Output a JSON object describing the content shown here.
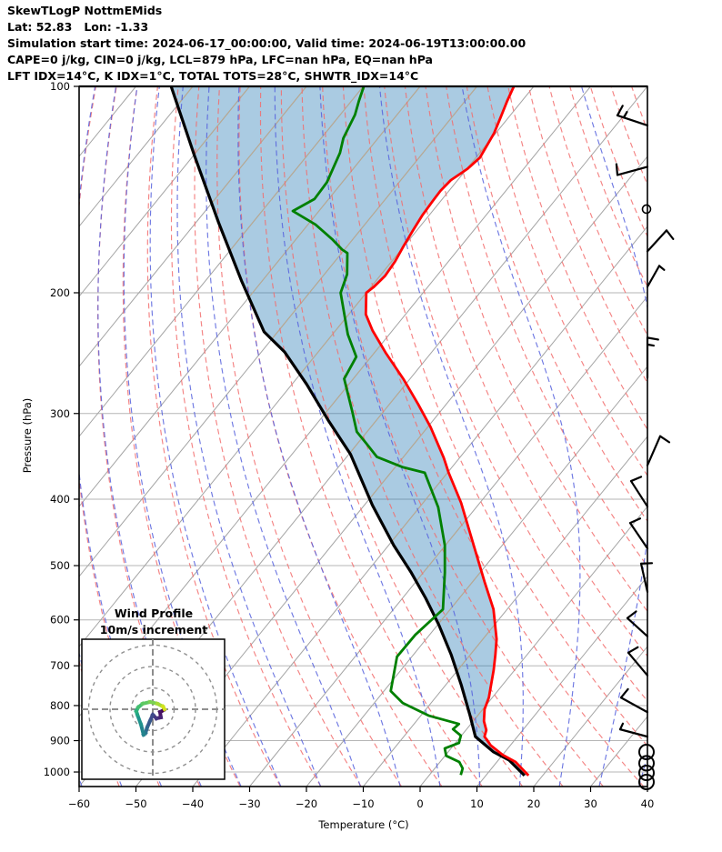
{
  "header": {
    "title": "SkewTLogP NottmEMids",
    "location": "Lat: 52.83   Lon: -1.33",
    "times": "Simulation start time: 2024-06-17_00:00:00, Valid time: 2024-06-19T13:00:00.00",
    "indices1": "CAPE=0 j/kg, CIN=0 j/kg, LCL=879 hPa, LFC=nan hPa, EQ=nan hPa",
    "indices2": "LFT IDX=14°C, K IDX=1°C, TOTAL TOTS=28°C, SHWTR_IDX=14°C"
  },
  "inset": {
    "title_line1": "Wind Profile",
    "title_line2": "10m/s increment"
  },
  "chart_data": {
    "type": "skewt-logp",
    "title": "SkewTLogP NottmEMids",
    "xlabel": "Temperature (°C)",
    "ylabel": "Pressure (hPa)",
    "x_ticks": [
      -60,
      -50,
      -40,
      -30,
      -20,
      -10,
      0,
      10,
      20,
      30,
      40
    ],
    "y_ticks": [
      100,
      200,
      300,
      400,
      500,
      600,
      700,
      800,
      900,
      1000
    ],
    "x_range_C": [
      -60,
      40
    ],
    "p_range_hPa": [
      100,
      1050
    ],
    "grid": true,
    "skew": "isotherms shift one full plot-width from bottom to top (45 deg axes skew)",
    "isotherm_step_C": 10,
    "temperature_profile_pT": [
      [
        100,
        -83.5
      ],
      [
        105,
        -82.6
      ],
      [
        111,
        -81.4
      ],
      [
        117,
        -80.3
      ],
      [
        127,
        -79.3
      ],
      [
        132,
        -79.9
      ],
      [
        137,
        -81.2
      ],
      [
        142,
        -81.5
      ],
      [
        147,
        -81.4
      ],
      [
        154,
        -81.2
      ],
      [
        162,
        -80.7
      ],
      [
        171,
        -80.1
      ],
      [
        180,
        -79.4
      ],
      [
        189,
        -79.1
      ],
      [
        196,
        -79.5
      ],
      [
        200,
        -80.0
      ],
      [
        215,
        -77.0
      ],
      [
        227,
        -73.5
      ],
      [
        245,
        -67.9
      ],
      [
        267,
        -61.2
      ],
      [
        291,
        -54.9
      ],
      [
        314,
        -49.5
      ],
      [
        348,
        -42.8
      ],
      [
        366,
        -39.8
      ],
      [
        405,
        -33.3
      ],
      [
        482,
        -23.2
      ],
      [
        528,
        -17.9
      ],
      [
        579,
        -12.4
      ],
      [
        640,
        -7.6
      ],
      [
        674,
        -5.6
      ],
      [
        710,
        -3.7
      ],
      [
        779,
        -0.6
      ],
      [
        810,
        0.3
      ],
      [
        843,
        1.9
      ],
      [
        869,
        3.6
      ],
      [
        888,
        4.2
      ],
      [
        915,
        6.6
      ],
      [
        944,
        10.0
      ],
      [
        967,
        13.3
      ],
      [
        1012,
        17.5
      ]
    ],
    "dewpoint_profile_pT": [
      [
        100,
        -109.9
      ],
      [
        105,
        -108.7
      ],
      [
        110,
        -107.4
      ],
      [
        119,
        -106.1
      ],
      [
        125,
        -104.6
      ],
      [
        138,
        -102.7
      ],
      [
        146,
        -102.5
      ],
      [
        152,
        -104.6
      ],
      [
        159,
        -98.7
      ],
      [
        167,
        -93.7
      ],
      [
        173,
        -90.4
      ],
      [
        175,
        -89.0
      ],
      [
        188,
        -86.0
      ],
      [
        200,
        -84.5
      ],
      [
        230,
        -77.3
      ],
      [
        248,
        -72.6
      ],
      [
        267,
        -71.6
      ],
      [
        298,
        -65.5
      ],
      [
        319,
        -61.8
      ],
      [
        332,
        -58.4
      ],
      [
        347,
        -54.7
      ],
      [
        359,
        -48.8
      ],
      [
        366,
        -44.0
      ],
      [
        411,
        -36.7
      ],
      [
        467,
        -30.1
      ],
      [
        512,
        -26.2
      ],
      [
        579,
        -21.3
      ],
      [
        631,
        -22.5
      ],
      [
        679,
        -22.6
      ],
      [
        762,
        -18.8
      ],
      [
        793,
        -15.0
      ],
      [
        828,
        -8.5
      ],
      [
        851,
        -2.1
      ],
      [
        866,
        -2.4
      ],
      [
        885,
        -0.1
      ],
      [
        907,
        0.6
      ],
      [
        924,
        -1.1
      ],
      [
        947,
        0.2
      ],
      [
        967,
        3.4
      ],
      [
        988,
        4.9
      ],
      [
        1010,
        5.5
      ]
    ],
    "parcel_profile_pT": [
      [
        100,
        -143.8
      ],
      [
        126,
        -129.9
      ],
      [
        158,
        -116.0
      ],
      [
        192,
        -103.7
      ],
      [
        228,
        -92.4
      ],
      [
        244,
        -85.9
      ],
      [
        272,
        -77.4
      ],
      [
        308,
        -68.2
      ],
      [
        344,
        -59.7
      ],
      [
        408,
        -48.6
      ],
      [
        467,
        -39.1
      ],
      [
        512,
        -32.1
      ],
      [
        558,
        -25.9
      ],
      [
        610,
        -19.8
      ],
      [
        674,
        -13.4
      ],
      [
        746,
        -7.3
      ],
      [
        828,
        -1.3
      ],
      [
        888,
        2.6
      ],
      [
        935,
        8.0
      ],
      [
        961,
        11.9
      ],
      [
        1012,
        16.8
      ]
    ],
    "cape_shading": "filled between parcel profile and temperature profile, CAPE=0 CIN=0",
    "lcl_hpa": 879,
    "wind_barbs": [
      {
        "p": 114,
        "dx": -33,
        "dy": -11,
        "speed_ms": 15
      },
      {
        "p": 131,
        "dx": -33,
        "dy": 9,
        "speed_ms": 10
      },
      {
        "p": 174,
        "dx": 21,
        "dy": -23,
        "speed_ms": 10
      },
      {
        "p": 196,
        "dx": 13,
        "dy": -23,
        "speed_ms": 5
      },
      {
        "p": 266,
        "dx": 0,
        "dy": -44,
        "speed_ms": 15
      },
      {
        "p": 357,
        "dx": 14,
        "dy": -32,
        "speed_ms": 10
      },
      {
        "p": 410,
        "dx": -18,
        "dy": -28,
        "speed_ms": 10
      },
      {
        "p": 472,
        "dx": -19,
        "dy": -28,
        "speed_ms": 10
      },
      {
        "p": 546,
        "dx": -7,
        "dy": -31,
        "speed_ms": 10
      },
      {
        "p": 634,
        "dx": -22,
        "dy": -20,
        "speed_ms": 10
      },
      {
        "p": 723,
        "dx": -21,
        "dy": -25,
        "speed_ms": 10
      },
      {
        "p": 818,
        "dx": -29,
        "dy": -16,
        "speed_ms": 10
      },
      {
        "p": 888,
        "dx": -30,
        "dy": -8,
        "speed_ms": 5
      }
    ],
    "calm_levels": [
      {
        "p": 151,
        "r": 4.5
      },
      {
        "p": 935,
        "r": 8
      },
      {
        "p": 971,
        "r": 8
      },
      {
        "p": 1003,
        "r": 8
      },
      {
        "p": 1034,
        "r": 8
      }
    ],
    "hodograph": {
      "units": "m/s",
      "ring_step_ms": 10,
      "rings_ms": [
        10,
        20,
        30
      ],
      "trace_uv": [
        [
          5.1,
          -0.4
        ],
        [
          3.4,
          -1.3
        ],
        [
          3.8,
          -3.8
        ],
        [
          1.7,
          -4.3
        ],
        [
          0.0,
          -2.6
        ],
        [
          -1.3,
          -5.5
        ],
        [
          -2.6,
          -8.5
        ],
        [
          -3.4,
          -11.1
        ],
        [
          -4.3,
          -11.9
        ],
        [
          -5.5,
          -7.2
        ],
        [
          -7.2,
          -2.6
        ],
        [
          -7.7,
          -0.9
        ],
        [
          -6.8,
          0.9
        ],
        [
          -4.7,
          2.6
        ],
        [
          -1.3,
          3.4
        ],
        [
          2.1,
          2.6
        ],
        [
          4.7,
          1.3
        ],
        [
          5.5,
          0.0
        ]
      ],
      "trace_colors": [
        "#440154",
        "#471365",
        "#482475",
        "#453781",
        "#3f4a8a",
        "#38598c",
        "#30688e",
        "#2a768e",
        "#23848d",
        "#1f928c",
        "#21a585",
        "#2db27d",
        "#44bf70",
        "#5ec962",
        "#7ad151",
        "#a5db36",
        "#d2e21b"
      ]
    },
    "colors": {
      "temperature": "#ff0000",
      "dewpoint": "#008000",
      "parcel": "#000000",
      "cape_fill": "rgba(31,119,180,0.38)",
      "isotherm": "#a3a3a3",
      "isotherm_in_fill": "#c0a98c",
      "dry_adiabat": "#f26d6d",
      "moist_adiabat": "#5661dd",
      "pressure_grid": "#b5b5b5",
      "barb": "#000000"
    }
  }
}
